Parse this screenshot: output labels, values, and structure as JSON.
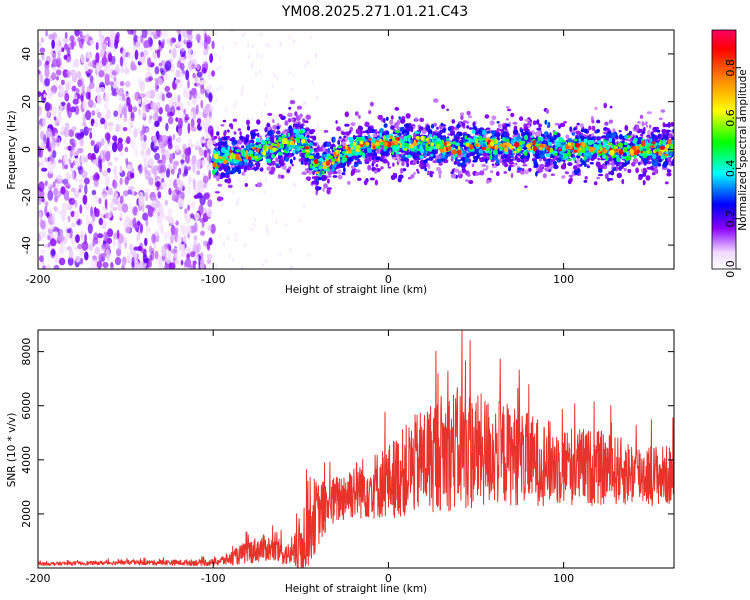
{
  "title": "YM08.2025.271.01.21.C43",
  "colors": {
    "snr_line": "#e8322c",
    "axis": "#000000",
    "background": "#ffffff"
  },
  "chart_data": [
    {
      "type": "heatmap",
      "name": "spectrogram",
      "xlabel": "Height of straight line (km)",
      "ylabel": "Frequency (Hz)",
      "xlim": [
        -200,
        163
      ],
      "ylim": [
        -50,
        50
      ],
      "xticks": [
        "-200",
        "-100",
        "0",
        "100"
      ],
      "yticks": [
        "-40",
        "-20",
        "0",
        "20",
        "40"
      ],
      "x_tick_values": [
        -200,
        -100,
        0,
        100
      ],
      "y_tick_values": [
        -40,
        -20,
        0,
        20,
        40
      ],
      "noise_region_km": [
        -200,
        -100
      ],
      "signal_region_km": [
        -100,
        163
      ],
      "signal_center_trace": [
        [
          -100,
          -5
        ],
        [
          -90,
          -3
        ],
        [
          -80,
          -2
        ],
        [
          -70,
          0
        ],
        [
          -60,
          2
        ],
        [
          -50,
          4
        ],
        [
          -45,
          -2
        ],
        [
          -40,
          -8
        ],
        [
          -35,
          -6
        ],
        [
          -30,
          -3
        ],
        [
          -20,
          1
        ],
        [
          -10,
          2
        ],
        [
          0,
          3
        ],
        [
          20,
          2
        ],
        [
          40,
          1
        ],
        [
          60,
          2
        ],
        [
          80,
          1
        ],
        [
          100,
          1
        ],
        [
          120,
          0
        ],
        [
          140,
          0
        ],
        [
          163,
          1
        ]
      ],
      "colorbar": {
        "label": "Normalized spectral amplitude",
        "range": [
          0,
          0.95
        ],
        "ticks": [
          "0.0",
          "0.2",
          "0.4",
          "0.6",
          "0.8"
        ],
        "tick_values": [
          0,
          0.2,
          0.4,
          0.6,
          0.8
        ]
      }
    },
    {
      "type": "line",
      "name": "snr",
      "xlabel": "Height of straight line (km)",
      "ylabel": "SNR (10 * v/v)",
      "xlim": [
        -200,
        163
      ],
      "ylim": [
        0,
        8800
      ],
      "xticks": [
        "-200",
        "-100",
        "0",
        "100"
      ],
      "yticks": [
        "2000",
        "4000",
        "6000",
        "8000"
      ],
      "x_tick_values": [
        -200,
        -100,
        0,
        100
      ],
      "y_tick_values": [
        2000,
        4000,
        6000,
        8000
      ],
      "envelope": {
        "x": [
          -200,
          -150,
          -100,
          -90,
          -80,
          -70,
          -60,
          -55,
          -50,
          -45,
          -40,
          -35,
          -30,
          -20,
          -10,
          0,
          10,
          20,
          30,
          40,
          50,
          60,
          70,
          80,
          100,
          120,
          140,
          163
        ],
        "mid": [
          150,
          200,
          200,
          350,
          600,
          750,
          550,
          450,
          800,
          1800,
          2000,
          2300,
          2500,
          2900,
          3000,
          3200,
          3600,
          4000,
          4300,
          4400,
          4300,
          4300,
          4200,
          4000,
          3800,
          3700,
          3500,
          3400
        ],
        "amp": [
          60,
          80,
          120,
          250,
          450,
          500,
          450,
          400,
          1300,
          1700,
          1200,
          1000,
          900,
          1100,
          1200,
          1400,
          1700,
          2000,
          2200,
          2300,
          2200,
          2000,
          1900,
          1700,
          1500,
          1400,
          1200,
          1100
        ]
      },
      "peak": {
        "x": 42,
        "y": 8800
      }
    }
  ]
}
